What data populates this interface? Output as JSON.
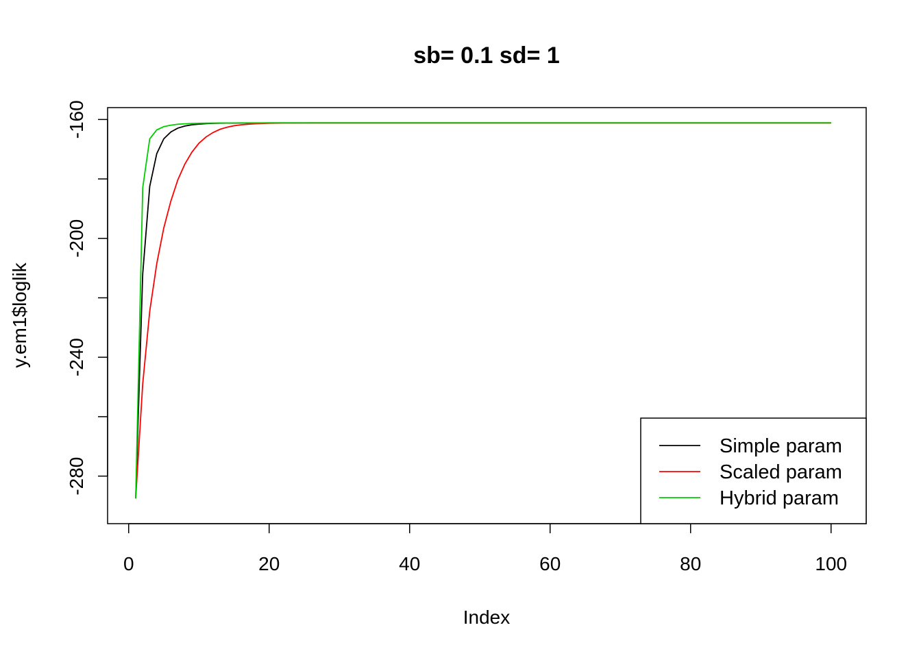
{
  "chart_data": {
    "type": "line",
    "title": "sb= 0.1 sd= 1",
    "xlabel": "Index",
    "ylabel": "y.em1$loglik",
    "xlim": [
      -3,
      105
    ],
    "ylim": [
      -296,
      -156
    ],
    "x_ticks": [
      0,
      20,
      40,
      60,
      80,
      100
    ],
    "y_ticks": [
      -160,
      -180,
      -200,
      -220,
      -240,
      -260,
      -280
    ],
    "y_tick_labels": [
      "-160",
      "-200",
      "-240",
      "-280"
    ],
    "legend_position": "bottom-right",
    "grid": false,
    "n_points": 100,
    "series": [
      {
        "name": "Simple param",
        "color": "#000000",
        "values": [
          -287.5,
          -212,
          -182.5,
          -171.5,
          -166.5,
          -164.2,
          -162.9,
          -162.2,
          -161.8,
          -161.55,
          -161.4,
          -161.3,
          -161.25,
          -161.22,
          -161.2,
          -161.19,
          -161.18,
          -161.17,
          -161.16,
          -161.15
        ]
      },
      {
        "name": "Scaled param",
        "color": "#ff0000",
        "values": [
          -287.5,
          -249,
          -224.5,
          -208.5,
          -196.5,
          -187.5,
          -180.3,
          -175,
          -171,
          -168,
          -165.9,
          -164.4,
          -163.3,
          -162.6,
          -162.1,
          -161.8,
          -161.6,
          -161.45,
          -161.35,
          -161.28,
          -161.23,
          -161.2,
          -161.18,
          -161.17,
          -161.16,
          -161.15
        ]
      },
      {
        "name": "Hybrid param",
        "color": "#00cd00",
        "values": [
          -287.5,
          -183,
          -166.5,
          -163.5,
          -162.4,
          -161.9,
          -161.6,
          -161.45,
          -161.35,
          -161.28,
          -161.23,
          -161.2,
          -161.18,
          -161.17,
          -161.16,
          -161.15
        ]
      }
    ],
    "plateau_value": -161.15
  }
}
